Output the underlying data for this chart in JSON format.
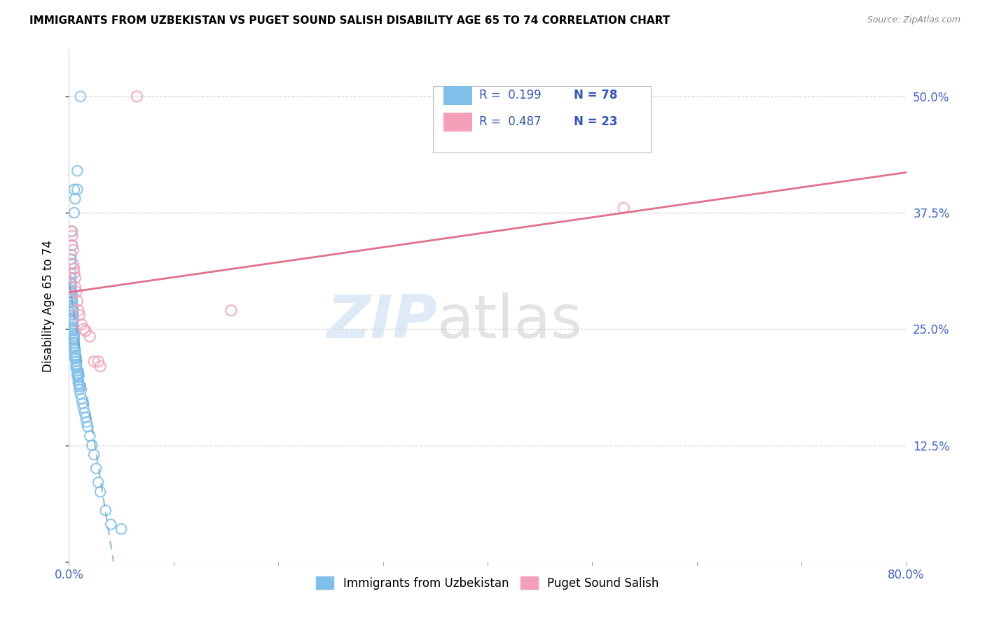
{
  "title": "IMMIGRANTS FROM UZBEKISTAN VS PUGET SOUND SALISH DISABILITY AGE 65 TO 74 CORRELATION CHART",
  "source": "Source: ZipAtlas.com",
  "ylabel": "Disability Age 65 to 74",
  "xlim": [
    0.0,
    0.8
  ],
  "ylim": [
    0.0,
    0.55
  ],
  "xtick_vals": [
    0.0,
    0.1,
    0.2,
    0.3,
    0.4,
    0.5,
    0.6,
    0.7,
    0.8
  ],
  "xticklabels": [
    "0.0%",
    "",
    "",
    "",
    "",
    "",
    "",
    "",
    "80.0%"
  ],
  "ytick_vals": [
    0.0,
    0.125,
    0.25,
    0.375,
    0.5
  ],
  "yticklabels_right": [
    "",
    "12.5%",
    "25.0%",
    "37.5%",
    "50.0%"
  ],
  "blue_color": "#7fbfea",
  "pink_color": "#f5a0b8",
  "trend_blue_color": "#5599cc",
  "trend_pink_color": "#e06080",
  "legend_label1": "Immigrants from Uzbekistan",
  "legend_label2": "Puget Sound Salish",
  "tick_color": "#4466cc",
  "blue_x": [
    0.008,
    0.008,
    0.005,
    0.006,
    0.005,
    0.003,
    0.003,
    0.002,
    0.002,
    0.002,
    0.002,
    0.002,
    0.002,
    0.002,
    0.002,
    0.002,
    0.002,
    0.003,
    0.003,
    0.003,
    0.003,
    0.003,
    0.003,
    0.004,
    0.004,
    0.004,
    0.004,
    0.004,
    0.004,
    0.004,
    0.004,
    0.004,
    0.004,
    0.005,
    0.005,
    0.005,
    0.005,
    0.005,
    0.005,
    0.005,
    0.005,
    0.006,
    0.006,
    0.006,
    0.006,
    0.006,
    0.007,
    0.007,
    0.007,
    0.007,
    0.008,
    0.008,
    0.008,
    0.009,
    0.009,
    0.009,
    0.01,
    0.01,
    0.01,
    0.011,
    0.012,
    0.013,
    0.014,
    0.015,
    0.016,
    0.017,
    0.018,
    0.02,
    0.022,
    0.024,
    0.026,
    0.028,
    0.03,
    0.035,
    0.04,
    0.05,
    0.011
  ],
  "blue_y": [
    0.42,
    0.4,
    0.4,
    0.39,
    0.375,
    0.355,
    0.34,
    0.33,
    0.325,
    0.32,
    0.31,
    0.305,
    0.3,
    0.298,
    0.295,
    0.292,
    0.29,
    0.288,
    0.285,
    0.283,
    0.28,
    0.278,
    0.275,
    0.272,
    0.27,
    0.268,
    0.265,
    0.262,
    0.26,
    0.258,
    0.255,
    0.252,
    0.25,
    0.248,
    0.245,
    0.243,
    0.24,
    0.238,
    0.235,
    0.232,
    0.23,
    0.228,
    0.225,
    0.222,
    0.22,
    0.218,
    0.215,
    0.212,
    0.21,
    0.208,
    0.205,
    0.202,
    0.2,
    0.198,
    0.195,
    0.192,
    0.19,
    0.188,
    0.185,
    0.18,
    0.175,
    0.17,
    0.165,
    0.16,
    0.155,
    0.15,
    0.145,
    0.135,
    0.125,
    0.115,
    0.1,
    0.085,
    0.075,
    0.055,
    0.04,
    0.035,
    0.5
  ],
  "pink_x": [
    0.002,
    0.003,
    0.003,
    0.004,
    0.004,
    0.005,
    0.005,
    0.006,
    0.006,
    0.007,
    0.008,
    0.009,
    0.01,
    0.012,
    0.014,
    0.016,
    0.02,
    0.024,
    0.028,
    0.03,
    0.065,
    0.53,
    0.155
  ],
  "pink_y": [
    0.355,
    0.35,
    0.34,
    0.335,
    0.32,
    0.315,
    0.31,
    0.305,
    0.295,
    0.29,
    0.28,
    0.27,
    0.265,
    0.255,
    0.25,
    0.248,
    0.242,
    0.215,
    0.215,
    0.21,
    0.5,
    0.38,
    0.27
  ]
}
